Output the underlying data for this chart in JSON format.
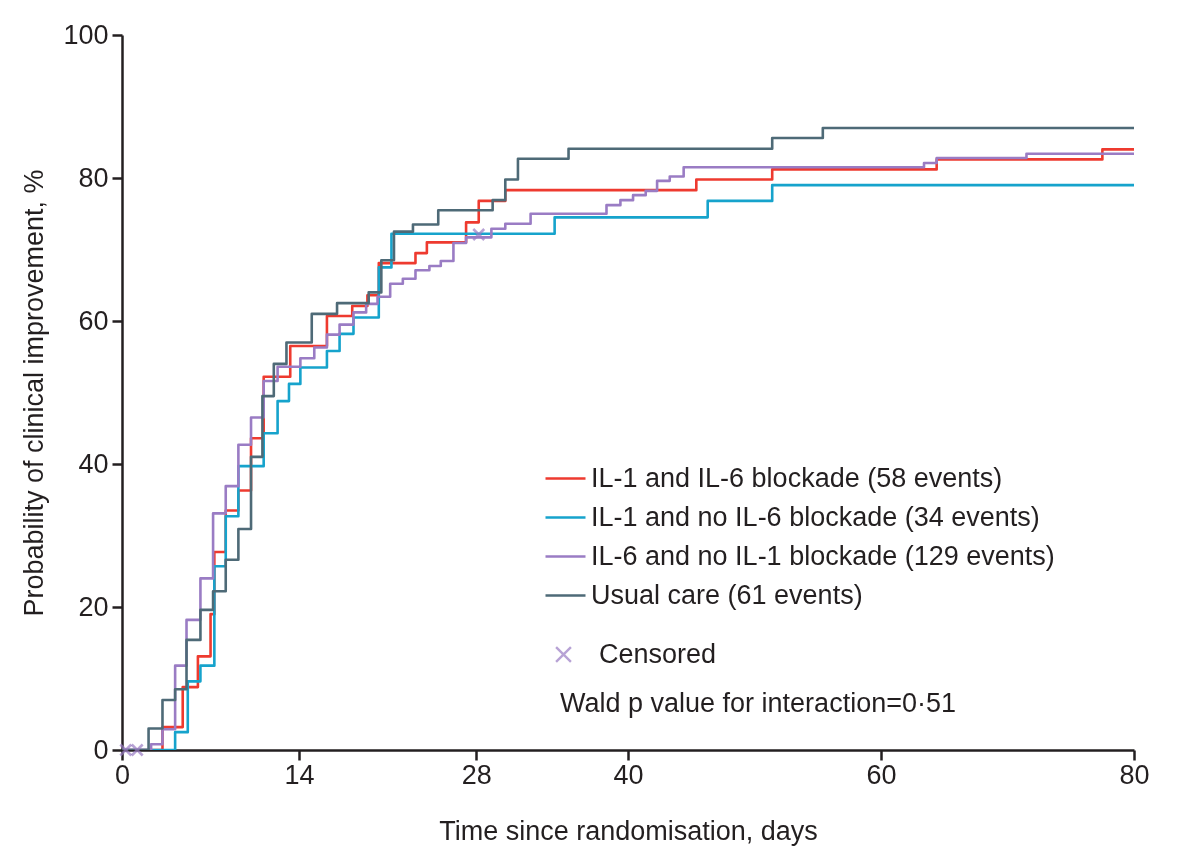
{
  "chart_data": {
    "type": "step",
    "xlabel": "Time since randomisation, days",
    "ylabel": "Probability of clinical improvement, %",
    "xlim": [
      0,
      80
    ],
    "ylim": [
      0,
      100
    ],
    "xticks": [
      0,
      14,
      28,
      40,
      60,
      80
    ],
    "yticks": [
      0,
      20,
      40,
      60,
      80,
      100
    ],
    "grid": false,
    "legend": "bottom right",
    "line_style": "solid",
    "annotations": [
      "Wald p value for interaction=0·51"
    ],
    "series": [
      {
        "name": "IL-1 and IL-6 blockade (58 events)",
        "color": "#ee3a2f",
        "x": [
          0,
          3.2,
          4.8,
          6,
          7,
          7.3,
          8.2,
          9.2,
          10.2,
          11.2,
          13.3,
          16.2,
          18.2,
          19.4,
          20.3,
          23.2,
          24.1,
          27.2,
          28.2,
          30.3,
          45.4,
          51.4,
          64.4,
          77.5,
          80
        ],
        "values": [
          0,
          3.2,
          8.8,
          13.1,
          19,
          27.7,
          33.5,
          36.3,
          43.6,
          52.2,
          56.5,
          60.7,
          62.1,
          63.6,
          68.1,
          69.5,
          71,
          73.8,
          76.8,
          78.3,
          79.8,
          81.2,
          82.6,
          84,
          84
        ]
      },
      {
        "name": "IL-1 and no IL-6 blockade (34 events)",
        "color": "#16a3cc",
        "x": [
          0,
          4.2,
          5.2,
          6.2,
          7.3,
          8.2,
          9.2,
          11.2,
          12.3,
          13.2,
          14.1,
          16.2,
          17.2,
          18.3,
          20.3,
          21.3,
          34.2,
          46.3,
          51.4,
          80
        ],
        "values": [
          0,
          2.5,
          9.6,
          11.8,
          25.7,
          32.7,
          39.7,
          44.3,
          48.8,
          51.2,
          53.5,
          55.8,
          58.2,
          60.5,
          67.5,
          72.2,
          74.5,
          76.8,
          79,
          79
        ]
      },
      {
        "name": "IL-6 and no IL-1 blockade (129 events)",
        "color": "#9a7cc4",
        "x": [
          0,
          2.3,
          3.2,
          4.2,
          5.1,
          6.2,
          7.2,
          8.2,
          9.2,
          10.2,
          11.2,
          12.3,
          14.1,
          15.2,
          16.2,
          17.2,
          18.3,
          19.3,
          20.2,
          21.2,
          22.2,
          23.2,
          24.3,
          25.2,
          26.2,
          27.2,
          29.2,
          30.3,
          32.3,
          38.3,
          39.4,
          40.4,
          41.4,
          42.3,
          43.3,
          44.4,
          63.4,
          64.4,
          71.5,
          80
        ],
        "values": [
          0,
          0.8,
          2.9,
          11.8,
          18.2,
          24,
          33.1,
          36.9,
          42.7,
          46.5,
          51.6,
          53.6,
          54.8,
          56.3,
          58.1,
          59.5,
          61.2,
          62.4,
          63.4,
          65.2,
          65.9,
          67.1,
          67.7,
          68.4,
          70.9,
          71.7,
          72.9,
          73.6,
          75,
          76.2,
          76.9,
          77.6,
          78.2,
          79.6,
          80.2,
          81.5,
          82.1,
          82.8,
          83.4,
          83.4
        ]
      },
      {
        "name": "Usual care (61 events)",
        "color": "#4e6a77",
        "x": [
          0,
          2.1,
          3.2,
          4.2,
          5.1,
          6.2,
          7.2,
          8.2,
          9.2,
          10.2,
          11.1,
          12,
          13,
          15,
          17,
          19.5,
          20.5,
          21.5,
          23,
          25,
          29.3,
          30.3,
          31.3,
          35.3,
          51.4,
          55.4,
          80
        ],
        "values": [
          0,
          3,
          7,
          8.5,
          15.4,
          19.6,
          22.2,
          26.6,
          30.9,
          41,
          49.5,
          54,
          57,
          61,
          62.5,
          64,
          68.5,
          72.5,
          73.5,
          75.5,
          76.9,
          79.8,
          82.7,
          84.1,
          85.6,
          87,
          87
        ]
      },
      {
        "name": "Censored",
        "type": "scatter",
        "marker": "cross",
        "color": "#9a7cc4",
        "x": [
          0.3,
          1.2,
          28.2
        ],
        "values": [
          0,
          0,
          72.1
        ]
      }
    ]
  }
}
